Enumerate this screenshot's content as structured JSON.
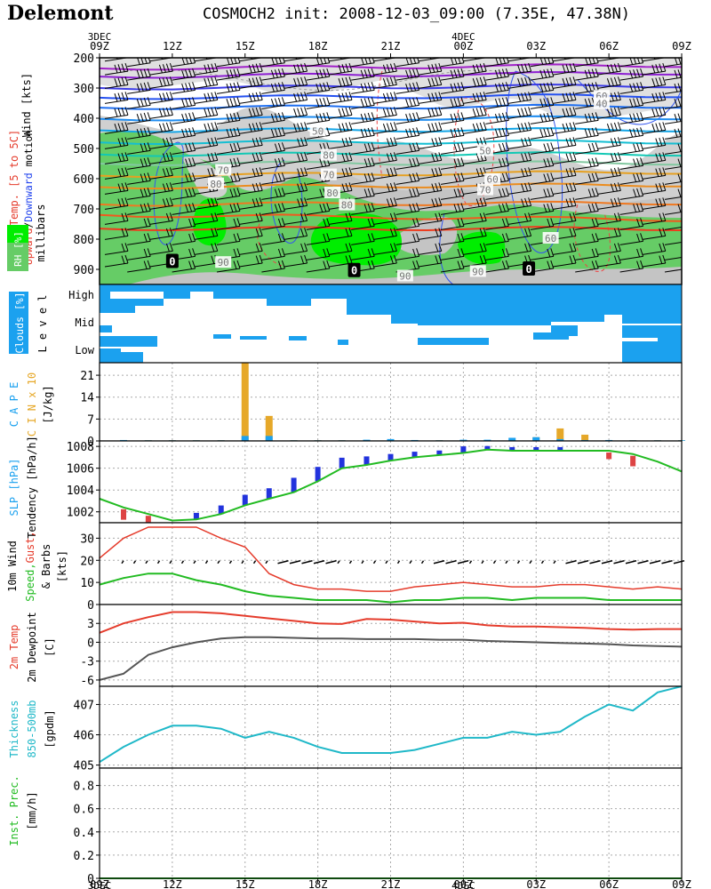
{
  "header": {
    "station": "Delemont",
    "run": "COSMOCH2 init: 2008-12-03_09:00 (7.35E, 47.38N)"
  },
  "time_axis": {
    "ticks": [
      "09Z",
      "12Z",
      "15Z",
      "18Z",
      "21Z",
      "00Z",
      "03Z",
      "06Z",
      "09Z"
    ],
    "top_dates": [
      {
        "label": "3DEC",
        "at": 0
      },
      {
        "label": "4DEC",
        "at": 5
      }
    ],
    "bottom_dates": [
      {
        "label": "3DEC",
        "at": 0
      },
      {
        "label": "4DEC",
        "at": 5
      }
    ]
  },
  "panel_labels": {
    "upper_air": {
      "wind": "Wind [kts]",
      "motion_a": "Upward",
      "motion_sep": "/",
      "motion_b": "Downward",
      "motion_c": " motion",
      "temp": "Temp. [5 to 5C]",
      "rh": "RH [%]",
      "mb": "millibars"
    },
    "clouds": {
      "name": "Clouds [%]",
      "level": "L e v e l"
    },
    "cape": {
      "cape": "C A P E",
      "cin": "C I N x 10",
      "unit": "[J/kg]"
    },
    "slp": {
      "slp": "SLP [hPa]",
      "tend": "Tendency [hPa/h]"
    },
    "wind10": {
      "l1": "10m Wind",
      "speed": "Speed,",
      "gust": "Gust,",
      "barbs": "& Barbs",
      "unit": "[kts]"
    },
    "temp2m": {
      "temp": "2m Temp",
      "dew": "2m Dewpoint",
      "unit": "[C]"
    },
    "thick": {
      "l1": "Thickness",
      "l2": "850-500mb",
      "unit": "[gpdm]"
    },
    "prec": {
      "l1": "Inst. Prec.",
      "unit": "[mm/h]"
    }
  },
  "colors": {
    "rh_dark": "#66cc66",
    "rh_bright": "#00ee00",
    "rh_gray": "#c8c8c8",
    "cloud": "#1ba1ef",
    "speed": "#22bb22",
    "gust": "#e53c2c",
    "temp": "#e53c2c",
    "dew": "#555555",
    "thick": "#1fb8c8",
    "cape": "#1ba1ef",
    "cin": "#e6a829",
    "slp": "#22bb22",
    "tend_pos": "#2233dd",
    "tend_neg": "#dd4444",
    "prec": "#22bb22"
  },
  "chart_data": [
    {
      "type": "heatmap",
      "name": "upper_air_cross_section",
      "ylim": [
        950,
        200
      ],
      "yticks": [
        200,
        300,
        400,
        500,
        600,
        700,
        800,
        900
      ],
      "rh_labels": [
        {
          "text": "80",
          "t": 1.6,
          "p": 620
        },
        {
          "text": "70",
          "t": 1.7,
          "p": 575
        },
        {
          "text": "90",
          "t": 1.7,
          "p": 880
        },
        {
          "text": "80",
          "t": 3.15,
          "p": 525
        },
        {
          "text": "70",
          "t": 3.15,
          "p": 590
        },
        {
          "text": "80",
          "t": 3.2,
          "p": 650
        },
        {
          "text": "80",
          "t": 3.4,
          "p": 690
        },
        {
          "text": "50",
          "t": 3.0,
          "p": 445
        },
        {
          "text": "60",
          "t": 5.4,
          "p": 605
        },
        {
          "text": "70",
          "t": 5.3,
          "p": 640
        },
        {
          "text": "50",
          "t": 5.3,
          "p": 510
        },
        {
          "text": "60",
          "t": 6.9,
          "p": 330
        },
        {
          "text": "40",
          "t": 6.9,
          "p": 355
        },
        {
          "text": "60",
          "t": 6.2,
          "p": 800
        },
        {
          "text": "90",
          "t": 4.2,
          "p": 925
        },
        {
          "text": "90",
          "t": 5.2,
          "p": 910
        }
      ],
      "zero_labels": [
        {
          "text": "0",
          "t": 1.0,
          "p": 875
        },
        {
          "text": "0",
          "t": 3.5,
          "p": 905
        },
        {
          "text": "0",
          "t": 5.9,
          "p": 900
        }
      ],
      "temp_levels": [
        {
          "p0": 235,
          "p1": 225,
          "color": "#a020c8"
        },
        {
          "p0": 262,
          "p1": 250,
          "color": "#8c1ed2"
        },
        {
          "p0": 300,
          "p1": 292,
          "color": "#3c3ce6"
        },
        {
          "p0": 332,
          "p1": 325,
          "color": "#2450f0"
        },
        {
          "p0": 365,
          "p1": 360,
          "color": "#1e6ef0"
        },
        {
          "p0": 402,
          "p1": 398,
          "color": "#1e8cf0"
        },
        {
          "p0": 440,
          "p1": 438,
          "color": "#14a5e6"
        },
        {
          "p0": 480,
          "p1": 478,
          "color": "#14bed2"
        },
        {
          "p0": 520,
          "p1": 518,
          "color": "#12c8b4"
        },
        {
          "p0": 550,
          "p1": 548,
          "color": "#82c8a0"
        },
        {
          "p0": 590,
          "p1": 578,
          "color": "#e6a020"
        },
        {
          "p0": 628,
          "p1": 620,
          "color": "#eb8c1e"
        },
        {
          "p0": 685,
          "p1": 680,
          "color": "#f07820"
        },
        {
          "p0": 720,
          "p1": 735,
          "color": "#f05a1e"
        },
        {
          "p0": 765,
          "p1": 765,
          "color": "#ee3c1e"
        }
      ]
    },
    {
      "type": "heatmap",
      "name": "cloud_cover_by_level",
      "levels": [
        "High",
        "Mid",
        "Low"
      ]
    },
    {
      "type": "bar",
      "name": "cape_cin",
      "ylim": [
        0,
        25
      ],
      "yticks": [
        0,
        7,
        14,
        21
      ],
      "x": [
        0.33,
        0.67,
        1,
        1.33,
        1.67,
        2,
        2.33,
        2.67,
        3,
        3.33,
        3.67,
        4,
        4.33,
        4.67,
        5,
        5.33,
        5.67,
        6,
        6.33,
        6.67,
        7,
        7.33,
        7.67,
        8
      ],
      "series": [
        {
          "name": "C A P E",
          "values": [
            0.3,
            0.2,
            0.2,
            0.2,
            0.2,
            1.6,
            1.6,
            0.2,
            0.2,
            0.2,
            0.4,
            0.6,
            0.3,
            0.2,
            0.4,
            0.4,
            1.0,
            1.2,
            0.6,
            0.3,
            0.3,
            0.2,
            0.2,
            0.2
          ]
        },
        {
          "name": "C I N x 10",
          "values": [
            0.2,
            0.2,
            0.2,
            0.2,
            0.2,
            25,
            8.0,
            0.2,
            0.2,
            0.2,
            0.2,
            0.2,
            0.2,
            0.2,
            0.2,
            0.2,
            0.2,
            1.2,
            4.0,
            2.0,
            0.2,
            0.2,
            0.2,
            0.2
          ]
        }
      ]
    },
    {
      "type": "line",
      "name": "slp",
      "ylim": [
        1001.0,
        1008.5
      ],
      "yticks": [
        1002,
        1004,
        1006,
        1008
      ],
      "x": [
        0,
        0.33,
        0.67,
        1,
        1.33,
        1.67,
        2,
        2.33,
        2.67,
        3,
        3.33,
        3.67,
        4,
        4.33,
        4.67,
        5,
        5.33,
        5.67,
        6,
        6.33,
        6.67,
        7,
        7.33,
        7.67,
        8
      ],
      "series": [
        {
          "name": "SLP [hPa]",
          "values": [
            1003.2,
            1002.4,
            1001.8,
            1001.2,
            1001.3,
            1001.8,
            1002.6,
            1003.2,
            1003.8,
            1004.8,
            1006.0,
            1006.3,
            1006.7,
            1007.0,
            1007.2,
            1007.4,
            1007.7,
            1007.6,
            1007.6,
            1007.6,
            1007.6,
            1007.6,
            1007.3,
            1006.6,
            1005.7
          ]
        }
      ],
      "tendency": {
        "x": [
          0.33,
          0.67,
          1.33,
          1.67,
          2,
          2.33,
          2.67,
          3,
          3.33,
          3.67,
          4,
          4.33,
          4.67,
          5,
          5.33,
          5.67,
          6,
          6.33,
          7,
          7.33
        ],
        "values": [
          -0.4,
          -0.3,
          0.2,
          0.3,
          0.4,
          0.4,
          0.6,
          0.6,
          0.4,
          0.3,
          0.2,
          0.15,
          0.1,
          0.2,
          0.05,
          0.05,
          0.05,
          0.05,
          -0.2,
          -0.4
        ]
      }
    },
    {
      "type": "line",
      "name": "wind_10m",
      "ylim": [
        0,
        37
      ],
      "yticks": [
        0,
        10,
        20,
        30
      ],
      "x": [
        0,
        0.33,
        0.67,
        1,
        1.33,
        1.67,
        2,
        2.33,
        2.67,
        3,
        3.33,
        3.67,
        4,
        4.33,
        4.67,
        5,
        5.33,
        5.67,
        6,
        6.33,
        6.67,
        7,
        7.33,
        7.67,
        8
      ],
      "series": [
        {
          "name": "Gust",
          "values": [
            21,
            30,
            35,
            35,
            35,
            30,
            26,
            14,
            9,
            7,
            7,
            6,
            6,
            8,
            9,
            10,
            9,
            8,
            8,
            9,
            9,
            8,
            7,
            8,
            7
          ]
        },
        {
          "name": "Speed",
          "values": [
            9,
            12,
            14,
            14,
            11,
            9,
            6,
            4,
            3,
            2,
            2,
            2,
            1,
            2,
            2,
            3,
            3,
            2,
            3,
            3,
            3,
            2,
            2,
            2,
            2
          ]
        }
      ],
      "barbs_level": 19
    },
    {
      "type": "line",
      "name": "temp_2m",
      "ylim": [
        -7,
        6
      ],
      "yticks": [
        -6,
        -3,
        0,
        3
      ],
      "x": [
        0,
        0.33,
        0.67,
        1,
        1.33,
        1.67,
        2,
        2.33,
        2.67,
        3,
        3.33,
        3.67,
        4,
        4.33,
        4.67,
        5,
        5.33,
        5.67,
        6,
        6.33,
        6.67,
        7,
        7.33,
        7.67,
        8
      ],
      "series": [
        {
          "name": "2m Temp",
          "values": [
            1.5,
            3.0,
            4.0,
            4.8,
            4.8,
            4.6,
            4.2,
            3.8,
            3.4,
            3.0,
            2.9,
            3.7,
            3.6,
            3.3,
            3.0,
            3.1,
            2.7,
            2.5,
            2.5,
            2.4,
            2.3,
            2.1,
            2.0,
            2.1,
            2.1
          ]
        },
        {
          "name": "2m Dewpoint",
          "values": [
            -6.0,
            -5.0,
            -2.0,
            -0.8,
            0.0,
            0.6,
            0.8,
            0.8,
            0.7,
            0.6,
            0.6,
            0.5,
            0.5,
            0.5,
            0.4,
            0.4,
            0.2,
            0.1,
            0.0,
            -0.1,
            -0.2,
            -0.3,
            -0.5,
            -0.6,
            -0.7
          ]
        }
      ]
    },
    {
      "type": "line",
      "name": "thickness_850_500",
      "ylim": [
        404.9,
        407.6
      ],
      "yticks": [
        405,
        406,
        407
      ],
      "x": [
        0,
        0.33,
        0.67,
        1,
        1.33,
        1.67,
        2,
        2.33,
        2.67,
        3,
        3.33,
        3.67,
        4,
        4.33,
        4.67,
        5,
        5.33,
        5.67,
        6,
        6.33,
        6.67,
        7,
        7.33,
        7.67,
        8
      ],
      "series": [
        {
          "name": "Thickness",
          "values": [
            405.1,
            405.6,
            406.0,
            406.3,
            406.3,
            406.2,
            405.9,
            406.1,
            405.9,
            405.6,
            405.4,
            405.4,
            405.4,
            405.5,
            405.7,
            405.9,
            405.9,
            406.1,
            406.0,
            406.1,
            406.6,
            407.0,
            406.8,
            407.4,
            407.6
          ]
        }
      ]
    },
    {
      "type": "line",
      "name": "inst_precip",
      "ylim": [
        0,
        0.95
      ],
      "yticks": [
        0,
        0.2,
        0.4,
        0.6,
        0.8
      ],
      "x": [
        0,
        8
      ],
      "series": [
        {
          "name": "Inst. Prec.",
          "values": [
            0,
            0
          ]
        }
      ]
    }
  ]
}
